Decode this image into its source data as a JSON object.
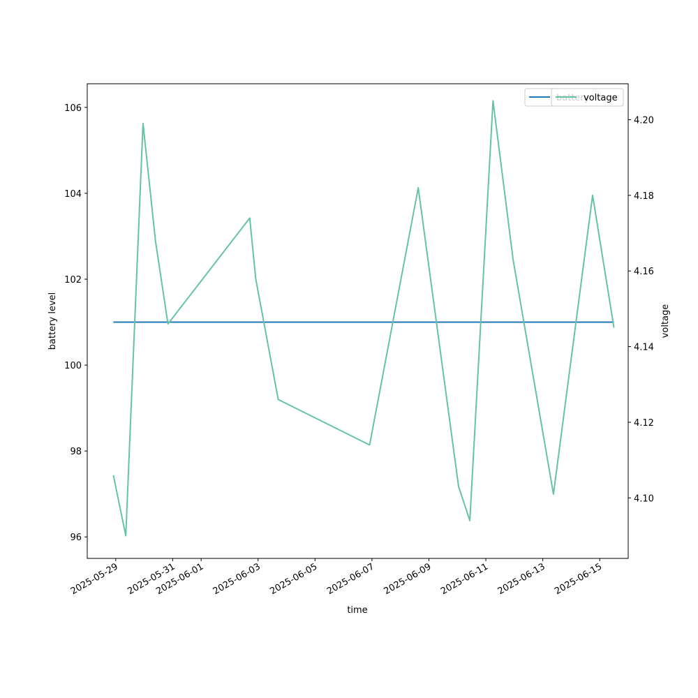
{
  "chart_data": {
    "type": "line",
    "title": "",
    "xlabel": "time",
    "ylabel_left": "battery level",
    "ylabel_right": "voltage",
    "x_tick_labels": [
      "2025-05-29",
      "2025-05-31",
      "2025-06-01",
      "2025-06-03",
      "2025-06-05",
      "2025-06-07",
      "2025-06-09",
      "2025-06-11",
      "2025-06-13",
      "2025-06-15"
    ],
    "xlim": [
      "2025-05-28",
      "2025-06-16"
    ],
    "ylim_left": [
      95.5,
      106.55
    ],
    "yticks_left": [
      96,
      98,
      100,
      102,
      104,
      106
    ],
    "ylim_right": [
      4.084,
      4.2095
    ],
    "yticks_right": [
      "4.10",
      "4.12",
      "4.14",
      "4.16",
      "4.18",
      "4.20"
    ],
    "legend_placement": "top-right",
    "series": [
      {
        "name": "battery",
        "axis": "left",
        "color": "#1f77b4",
        "x": [
          "2025-05-28 22:00",
          "2025-06-15 12:00"
        ],
        "values": [
          101,
          101
        ]
      },
      {
        "name": "voltage",
        "axis": "right",
        "color": "#66c2a5",
        "x": [
          "2025-05-28 22:00",
          "2025-05-29 08:30",
          "2025-05-29 23:00",
          "2025-05-30 09:30",
          "2025-05-30 20:00",
          "2025-06-02 17:00",
          "2025-06-02 22:00",
          "2025-06-03 17:00",
          "2025-06-06 22:00",
          "2025-06-08 15:00",
          "2025-06-10 01:00",
          "2025-06-10 10:30",
          "2025-06-11 06:00",
          "2025-06-11 23:00",
          "2025-06-13 09:00",
          "2025-06-14 18:00",
          "2025-06-15 12:00"
        ],
        "values": [
          4.106,
          4.09,
          4.199,
          4.168,
          4.146,
          4.174,
          4.158,
          4.126,
          4.114,
          4.182,
          4.103,
          4.094,
          4.205,
          4.163,
          4.101,
          4.18,
          4.145
        ]
      }
    ]
  }
}
